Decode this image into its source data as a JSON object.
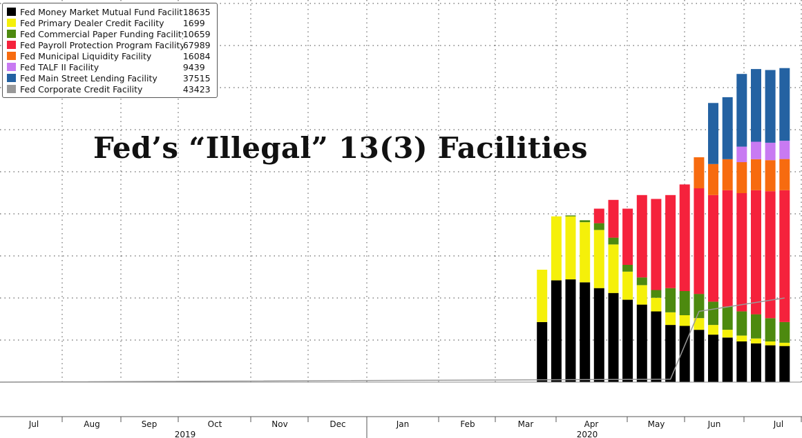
{
  "chart_data": {
    "type": "bar",
    "title": "Fed’s “Illegal” 13(3) Facilities",
    "stacked": true,
    "grid": true,
    "legend_position": "top-left",
    "legend": [
      {
        "name": "Fed Money Market Mutual Fund Facility",
        "value": "18635",
        "color": "#000000"
      },
      {
        "name": "Fed Primary Dealer Credit Facility",
        "value": "1699",
        "color": "#f5f00a"
      },
      {
        "name": "Fed Commercial Paper Funding Facility",
        "value": "10659",
        "color": "#4d8a0f"
      },
      {
        "name": "Fed Payroll Protection Program Facility",
        "value": "67989",
        "color": "#f5223c"
      },
      {
        "name": "Fed Municipal Liquidity Facility",
        "value": "16084",
        "color": "#f76b0f"
      },
      {
        "name": "Fed TALF II Facility",
        "value": "9439",
        "color": "#c87af2"
      },
      {
        "name": "Fed Main Street Lending Facility",
        "value": "37515",
        "color": "#2462a2"
      },
      {
        "name": "Fed Corporate Credit Facility",
        "value": "43423",
        "color": "#999999"
      }
    ],
    "x_axis": {
      "month_labels": [
        "Jul",
        "Aug",
        "Sep",
        "Oct",
        "Nov",
        "Dec",
        "Jan",
        "Feb",
        "Mar",
        "Apr",
        "May",
        "Jun",
        "Jul"
      ],
      "year_labels": [
        "2019",
        "2020"
      ]
    },
    "ylim": [
      0,
      195000
    ],
    "bar_weeks": [
      "2020-03-18",
      "2020-03-25",
      "2020-04-01",
      "2020-04-08",
      "2020-04-15",
      "2020-04-22",
      "2020-04-29",
      "2020-05-06",
      "2020-05-13",
      "2020-05-20",
      "2020-05-27",
      "2020-06-03",
      "2020-06-10",
      "2020-06-17",
      "2020-06-24",
      "2020-07-01",
      "2020-07-08",
      "2020-07-15"
    ],
    "series": [
      {
        "name": "Fed Money Market Mutual Fund Facility",
        "color": "#000000",
        "values": [
          31000,
          52500,
          53000,
          51500,
          48500,
          46000,
          42500,
          40000,
          36500,
          29500,
          29000,
          27000,
          24500,
          23000,
          21000,
          20000,
          19000,
          18635
        ]
      },
      {
        "name": "Fed Primary Dealer Credit Facility",
        "color": "#f5f00a",
        "values": [
          27000,
          33000,
          32500,
          31000,
          30000,
          25000,
          14500,
          10000,
          7000,
          6500,
          5500,
          6000,
          5000,
          4000,
          3000,
          2500,
          2000,
          1699
        ]
      },
      {
        "name": "Fed Commercial Paper Funding Facility",
        "color": "#4d8a0f",
        "values": [
          0,
          0,
          500,
          1000,
          3500,
          3500,
          3500,
          4000,
          4000,
          12500,
          12500,
          12500,
          12000,
          12000,
          12500,
          12500,
          12000,
          10659
        ]
      },
      {
        "name": "Fed Payroll Protection Program Facility",
        "color": "#f5223c",
        "values": [
          0,
          0,
          0,
          0,
          7500,
          19500,
          29000,
          42500,
          47000,
          48000,
          55000,
          54500,
          55000,
          60000,
          61000,
          64000,
          65500,
          67989
        ]
      },
      {
        "name": "Fed Municipal Liquidity Facility",
        "color": "#f76b0f",
        "values": [
          0,
          0,
          0,
          0,
          0,
          0,
          0,
          0,
          0,
          0,
          0,
          16000,
          16000,
          16000,
          16000,
          16000,
          16000,
          16084
        ]
      },
      {
        "name": "Fed TALF II Facility",
        "color": "#c87af2",
        "values": [
          0,
          0,
          0,
          0,
          0,
          0,
          0,
          0,
          0,
          0,
          0,
          0,
          0,
          0,
          8000,
          9000,
          9000,
          9439
        ]
      },
      {
        "name": "Fed Main Street Lending Facility",
        "color": "#2462a2",
        "values": [
          0,
          0,
          0,
          0,
          0,
          0,
          0,
          0,
          0,
          0,
          0,
          0,
          31500,
          32000,
          37500,
          37500,
          37500,
          37515
        ]
      }
    ],
    "line_series": {
      "name": "Fed Corporate Credit Facility",
      "color": "#999999",
      "dates": [
        "2019-06-26",
        "2020-05-20",
        "2020-06-03",
        "2020-07-15"
      ],
      "values": [
        0,
        1500,
        36500,
        43423
      ]
    }
  }
}
